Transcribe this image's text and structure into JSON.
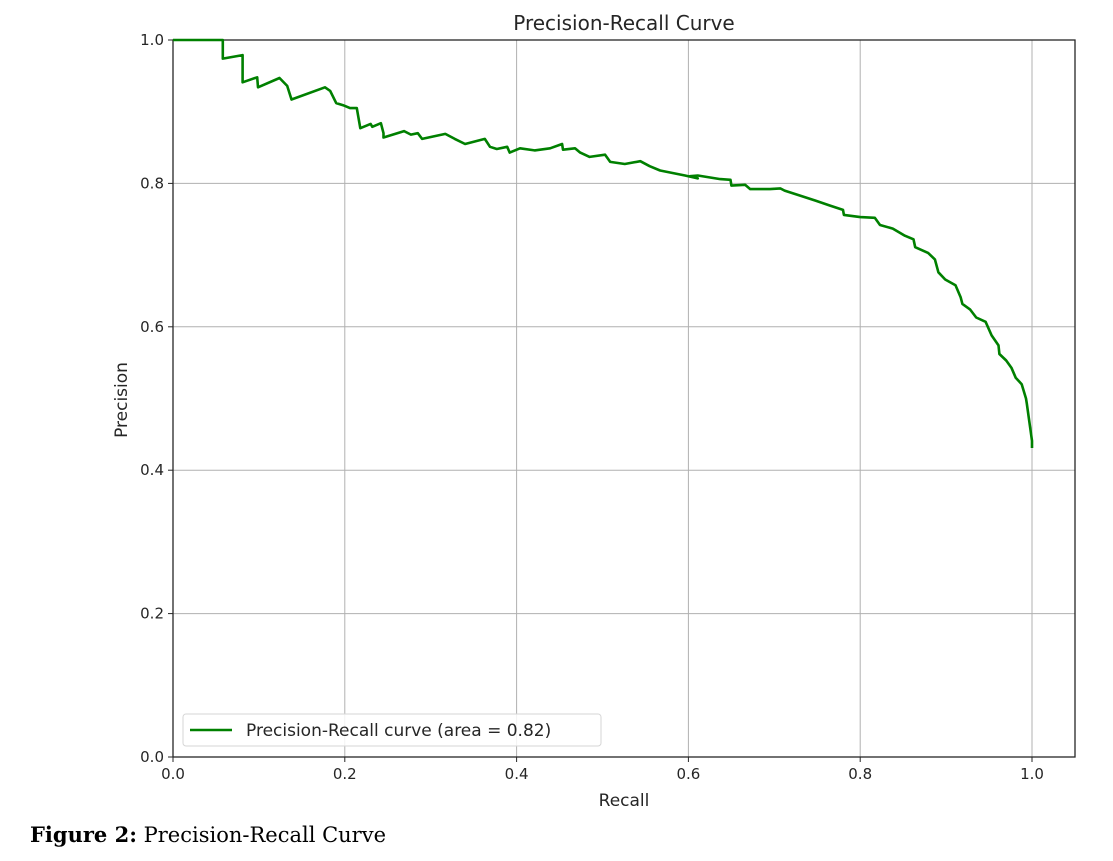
{
  "caption": {
    "label": "Figure 2",
    "separator": ":",
    "text": " Precision-Recall Curve"
  },
  "chart_data": {
    "type": "line",
    "title": "Precision-Recall Curve",
    "xlabel": "Recall",
    "ylabel": "Precision",
    "xlim": [
      0.0,
      1.05
    ],
    "ylim": [
      0.0,
      1.0
    ],
    "xticks": [
      "0.0",
      "0.2",
      "0.4",
      "0.6",
      "0.8",
      "1.0"
    ],
    "yticks": [
      "0.0",
      "0.2",
      "0.4",
      "0.6",
      "0.8",
      "1.0"
    ],
    "grid": true,
    "legend_position": "lower-left",
    "colors": {
      "line": "#008000",
      "grid": "#b0b0b0",
      "axis": "#262626"
    },
    "series": [
      {
        "name": "Precision-Recall curve (area = 0.82)",
        "area": 0.82,
        "x": [
          0.0,
          0.058,
          0.058,
          0.081,
          0.081,
          0.098,
          0.099,
          0.124,
          0.133,
          0.138,
          0.177,
          0.183,
          0.19,
          0.198,
          0.206,
          0.214,
          0.218,
          0.23,
          0.232,
          0.242,
          0.245,
          0.245,
          0.269,
          0.277,
          0.285,
          0.29,
          0.317,
          0.328,
          0.34,
          0.363,
          0.369,
          0.377,
          0.389,
          0.392,
          0.404,
          0.421,
          0.439,
          0.453,
          0.454,
          0.468,
          0.474,
          0.485,
          0.503,
          0.509,
          0.526,
          0.544,
          0.555,
          0.567,
          0.596,
          0.611,
          0.602,
          0.611,
          0.637,
          0.649,
          0.65,
          0.666,
          0.672,
          0.695,
          0.707,
          0.712,
          0.73,
          0.748,
          0.765,
          0.78,
          0.781,
          0.8,
          0.817,
          0.823,
          0.838,
          0.852,
          0.862,
          0.864,
          0.879,
          0.887,
          0.891,
          0.899,
          0.911,
          0.917,
          0.919,
          0.928,
          0.935,
          0.946,
          0.953,
          0.961,
          0.962,
          0.97,
          0.976,
          0.981,
          0.988,
          0.993,
          0.994,
          0.997,
          0.998,
          1.0,
          1.0
        ],
        "y": [
          1.0,
          1.0,
          0.974,
          0.979,
          0.941,
          0.948,
          0.934,
          0.947,
          0.936,
          0.917,
          0.934,
          0.929,
          0.912,
          0.909,
          0.905,
          0.905,
          0.877,
          0.883,
          0.879,
          0.884,
          0.87,
          0.864,
          0.873,
          0.868,
          0.87,
          0.862,
          0.869,
          0.862,
          0.855,
          0.862,
          0.851,
          0.848,
          0.851,
          0.843,
          0.849,
          0.846,
          0.849,
          0.855,
          0.847,
          0.849,
          0.843,
          0.837,
          0.84,
          0.83,
          0.827,
          0.831,
          0.824,
          0.818,
          0.811,
          0.807,
          0.81,
          0.811,
          0.806,
          0.805,
          0.797,
          0.798,
          0.792,
          0.792,
          0.793,
          0.79,
          0.783,
          0.776,
          0.769,
          0.763,
          0.756,
          0.753,
          0.752,
          0.742,
          0.737,
          0.727,
          0.722,
          0.711,
          0.703,
          0.694,
          0.676,
          0.666,
          0.658,
          0.641,
          0.632,
          0.624,
          0.613,
          0.607,
          0.588,
          0.574,
          0.562,
          0.553,
          0.543,
          0.529,
          0.52,
          0.5,
          0.493,
          0.467,
          0.458,
          0.441,
          0.431
        ]
      }
    ]
  }
}
